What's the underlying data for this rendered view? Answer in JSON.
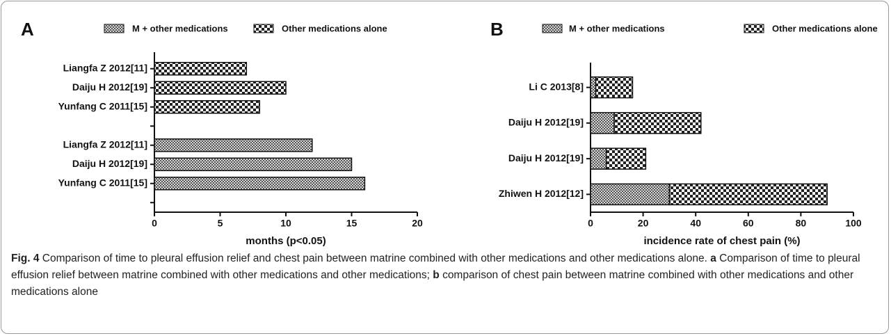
{
  "chart_data": [
    {
      "type": "bar",
      "orientation": "horizontal",
      "panel_label": "A",
      "categories": [
        "Liangfa Z 2012[11]",
        "Daiju H 2012[19]",
        "Yunfang C 2011[15]",
        null,
        "Liangfa Z 2012[11]",
        "Daiju H 2012[19]",
        "Yunfang C 2011[15]",
        null
      ],
      "series": [
        {
          "name": "M + other medications",
          "color": "#555555",
          "values": [
            null,
            null,
            null,
            null,
            12,
            15,
            16,
            null
          ]
        },
        {
          "name": "Other medications alone",
          "color": "#222222",
          "values": [
            7,
            10,
            8,
            null,
            null,
            null,
            null,
            null
          ]
        }
      ],
      "xlim": [
        0,
        20
      ],
      "xticks": [
        0,
        5,
        10,
        15,
        20
      ],
      "x_label": "months (p<0.05)"
    },
    {
      "type": "bar",
      "orientation": "horizontal",
      "stacked": true,
      "panel_label": "B",
      "categories": [
        "Li C 2013[8]",
        "Daiju H 2012[19]",
        "Daiju H 2012[19]",
        "Zhiwen H 2012[12]"
      ],
      "series": [
        {
          "name": "M + other medications",
          "color": "#555555",
          "values": [
            2,
            9,
            6,
            30
          ]
        },
        {
          "name": "Other medications alone",
          "color": "#222222",
          "values": [
            14,
            33,
            15,
            60
          ]
        }
      ],
      "xlim": [
        0,
        100
      ],
      "xticks": [
        0,
        20,
        40,
        60,
        80,
        100
      ],
      "x_label": "incidence rate of chest pain  (%)"
    }
  ],
  "caption": {
    "label": "Fig. 4",
    "text": "Comparison of time to pleural effusion relief and chest pain between matrine combined with other medications and other medications alone.",
    "parts": [
      {
        "label": "a",
        "text": "Comparison of time to pleural effusion relief between matrine combined with other medications and other medications;"
      },
      {
        "label": "b",
        "text": "comparison of chest pain between matrine combined with other medications and other medications alone"
      }
    ]
  }
}
